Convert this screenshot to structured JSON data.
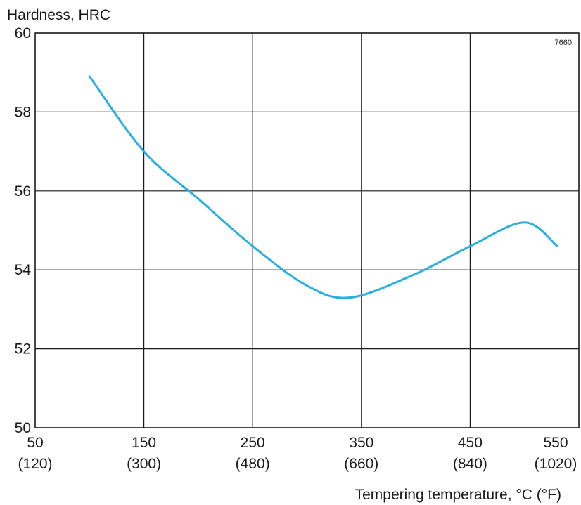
{
  "chart_data": {
    "type": "line",
    "title": "",
    "ylabel": "Hardness, HRC",
    "xlabel": "Tempering temperature, °C (°F)",
    "figure_code": "7660",
    "xlim": [
      50,
      550
    ],
    "ylim": [
      50,
      60
    ],
    "x_ticks": [
      50,
      150,
      250,
      350,
      450,
      550
    ],
    "x_tick_labels": [
      "50",
      "150",
      "250",
      "350",
      "450",
      "550"
    ],
    "x_tick_sublabels": [
      "(120)",
      "(300)",
      "(480)",
      "(660)",
      "(840)",
      "(1020)"
    ],
    "y_ticks": [
      50,
      52,
      54,
      56,
      58,
      60
    ],
    "y_tick_labels": [
      "50",
      "52",
      "54",
      "56",
      "58",
      "60"
    ],
    "grid": true,
    "line_color": "#2ab0e0",
    "series": [
      {
        "x": [
          100,
          150,
          200,
          250,
          300,
          340,
          400,
          450,
          500,
          530
        ],
        "y": [
          58.9,
          57.0,
          55.8,
          54.6,
          53.6,
          53.3,
          53.9,
          54.6,
          55.2,
          54.6
        ]
      }
    ]
  }
}
